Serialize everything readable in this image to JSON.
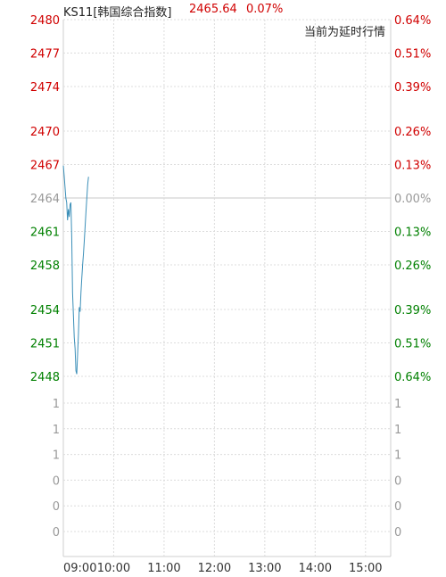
{
  "header": {
    "symbol": "KS11[韩国综合指数]",
    "price": "2465.64",
    "change_pct": "0.07%",
    "delay_note": "当前为延时行情"
  },
  "colors": {
    "up": "#d00000",
    "down": "#008000",
    "neutral": "#999999",
    "line": "#3b8fb8",
    "grid": "#dcdcdc"
  },
  "chart_data": {
    "type": "line",
    "title": "",
    "prev_close": 2464,
    "ylim": [
      2448,
      2480
    ],
    "price_ticks": [
      {
        "label": "2480",
        "value": 2480,
        "dir": "up"
      },
      {
        "label": "2477",
        "value": 2477,
        "dir": "up"
      },
      {
        "label": "2474",
        "value": 2474,
        "dir": "up"
      },
      {
        "label": "2470",
        "value": 2470,
        "dir": "up"
      },
      {
        "label": "2467",
        "value": 2467,
        "dir": "up"
      },
      {
        "label": "2464",
        "value": 2464,
        "dir": "flat"
      },
      {
        "label": "2461",
        "value": 2461,
        "dir": "down"
      },
      {
        "label": "2458",
        "value": 2458,
        "dir": "down"
      },
      {
        "label": "2454",
        "value": 2454,
        "dir": "down"
      },
      {
        "label": "2451",
        "value": 2451,
        "dir": "down"
      },
      {
        "label": "2448",
        "value": 2448,
        "dir": "down"
      }
    ],
    "pct_ticks": [
      "0.64%",
      "0.51%",
      "0.39%",
      "0.26%",
      "0.13%",
      "0.00%",
      "0.13%",
      "0.26%",
      "0.39%",
      "0.51%",
      "0.64%"
    ],
    "volume_ticks": [
      "1",
      "1",
      "1",
      "0",
      "0",
      "0"
    ],
    "x_ticks": [
      "09:00",
      "10:00",
      "11:00",
      "12:00",
      "13:00",
      "14:00",
      "15:00"
    ],
    "session": [
      "09:00",
      "15:30"
    ],
    "series": [
      {
        "points": [
          [
            "09:00",
            2466.9
          ],
          [
            "09:01",
            2466.0
          ],
          [
            "09:02",
            2465.0
          ],
          [
            "09:03",
            2464.0
          ],
          [
            "09:04",
            2463.6
          ],
          [
            "09:05",
            2462.0
          ],
          [
            "09:06",
            2463.0
          ],
          [
            "09:07",
            2462.3
          ],
          [
            "09:08",
            2463.4
          ],
          [
            "09:09",
            2463.6
          ],
          [
            "09:10",
            2460.5
          ],
          [
            "09:11",
            2455.5
          ],
          [
            "09:12",
            2453.5
          ],
          [
            "09:13",
            2451.5
          ],
          [
            "09:14",
            2450.5
          ],
          [
            "09:15",
            2448.5
          ],
          [
            "09:16",
            2448.2
          ],
          [
            "09:17",
            2450.0
          ],
          [
            "09:18",
            2451.8
          ],
          [
            "09:19",
            2454.2
          ],
          [
            "09:20",
            2453.8
          ],
          [
            "09:21",
            2455.5
          ],
          [
            "09:22",
            2456.8
          ],
          [
            "09:23",
            2458.0
          ],
          [
            "09:24",
            2459.0
          ],
          [
            "09:25",
            2460.2
          ],
          [
            "09:26",
            2461.5
          ],
          [
            "09:27",
            2462.8
          ],
          [
            "09:28",
            2464.0
          ],
          [
            "09:29",
            2465.2
          ],
          [
            "09:30",
            2465.9
          ]
        ]
      }
    ]
  }
}
